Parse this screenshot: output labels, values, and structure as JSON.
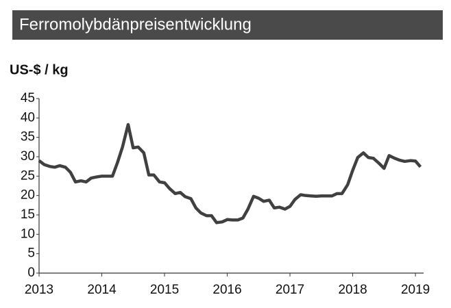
{
  "chart_data": {
    "type": "line",
    "title": "Ferromolybdänpreisentwicklung",
    "y_label": "US-$ / kg",
    "x": [
      2013.0,
      2013.08,
      2013.17,
      2013.25,
      2013.33,
      2013.42,
      2013.5,
      2013.58,
      2013.67,
      2013.75,
      2013.83,
      2013.92,
      2014.0,
      2014.08,
      2014.17,
      2014.25,
      2014.33,
      2014.42,
      2014.5,
      2014.58,
      2014.67,
      2014.75,
      2014.83,
      2014.92,
      2015.0,
      2015.08,
      2015.17,
      2015.25,
      2015.33,
      2015.42,
      2015.5,
      2015.58,
      2015.67,
      2015.75,
      2015.83,
      2015.92,
      2016.0,
      2016.08,
      2016.17,
      2016.25,
      2016.33,
      2016.42,
      2016.5,
      2016.58,
      2016.67,
      2016.75,
      2016.83,
      2016.92,
      2017.0,
      2017.08,
      2017.17,
      2017.25,
      2017.33,
      2017.42,
      2017.5,
      2017.58,
      2017.67,
      2017.75,
      2017.83,
      2017.92,
      2018.0,
      2018.08,
      2018.17,
      2018.25,
      2018.33,
      2018.42,
      2018.5,
      2018.58,
      2018.67,
      2018.75,
      2018.83,
      2018.92,
      2019.0,
      2019.08
    ],
    "series": [
      {
        "color": "#404040",
        "values": [
          29,
          28,
          27.5,
          27.3,
          27.7,
          27.3,
          26,
          23.5,
          23.8,
          23.5,
          24.5,
          24.8,
          25,
          25,
          25,
          28.5,
          32.5,
          38.3,
          32.3,
          32.5,
          31,
          25.3,
          25.3,
          23.5,
          23.3,
          21.8,
          20.5,
          20.8,
          19.7,
          19.2,
          16.8,
          15.5,
          14.8,
          14.8,
          13,
          13.2,
          13.8,
          13.7,
          13.7,
          14.2,
          16.5,
          19.8,
          19.3,
          18.5,
          18.8,
          16.8,
          17,
          16.5,
          17.2,
          19,
          20.2,
          20,
          19.9,
          19.8,
          19.9,
          19.9,
          19.9,
          20.5,
          20.5,
          22.8,
          26.5,
          29.8,
          31,
          29.8,
          29.6,
          28.3,
          27,
          30.3,
          29.6,
          29.1,
          28.8,
          29,
          28.9,
          27.4
        ]
      }
    ],
    "xlim": [
      2013,
      2019.13
    ],
    "xticks": [
      2013,
      2014,
      2015,
      2016,
      2017,
      2018,
      2019
    ],
    "ylim": [
      0,
      45
    ],
    "yticks": [
      0,
      5,
      10,
      15,
      20,
      25,
      30,
      35,
      40,
      45
    ],
    "grid": false
  }
}
